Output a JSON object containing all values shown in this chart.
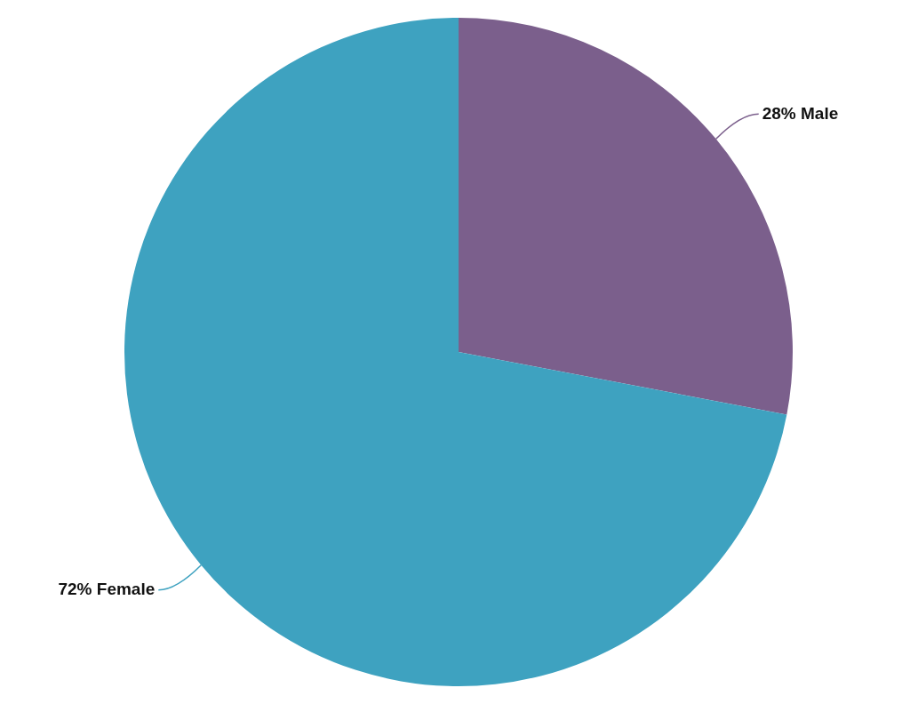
{
  "chart_data": {
    "type": "pie",
    "categories": [
      "Male",
      "Female"
    ],
    "values": [
      28,
      72
    ],
    "colors": [
      "#7b5f8c",
      "#3ea2c0"
    ],
    "value_labels": [
      "28%",
      "72%"
    ],
    "legend": false
  }
}
